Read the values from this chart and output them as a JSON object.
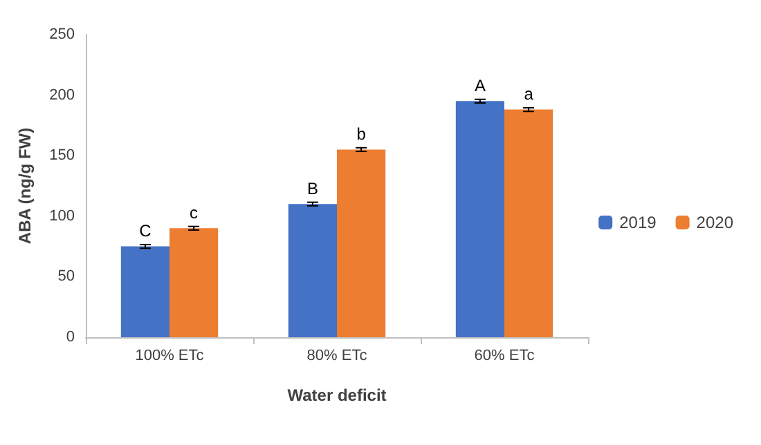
{
  "chart_data": {
    "type": "bar",
    "xlabel": "Water deficit",
    "ylabel": "ABA (ng/g FW)",
    "categories": [
      "100% ETc",
      "80% ETc",
      "60% ETc"
    ],
    "series": [
      {
        "name": "2019",
        "color": "#4472c4",
        "values": [
          75,
          110,
          195
        ],
        "errors": [
          1.5,
          1.5,
          1.5
        ]
      },
      {
        "name": "2020",
        "color": "#ed7d31",
        "values": [
          90,
          155,
          188
        ],
        "errors": [
          1.5,
          1.5,
          1.5
        ]
      }
    ],
    "ylim": [
      0,
      250
    ],
    "yticks": [
      0,
      50,
      100,
      150,
      200,
      250
    ],
    "grid": false,
    "legend": "right",
    "annotations": [
      {
        "text": "C",
        "x": "100% ETc",
        "y": 75
      },
      {
        "text": "c",
        "x": "100% ETc",
        "y": 90
      },
      {
        "text": "B",
        "x": "80% ETc",
        "y": 110
      },
      {
        "text": "b",
        "x": "80% ETc",
        "y": 155
      },
      {
        "text": "A",
        "x": "60% ETc",
        "y": 195
      },
      {
        "text": "a",
        "x": "60% ETc",
        "y": 188
      }
    ]
  }
}
